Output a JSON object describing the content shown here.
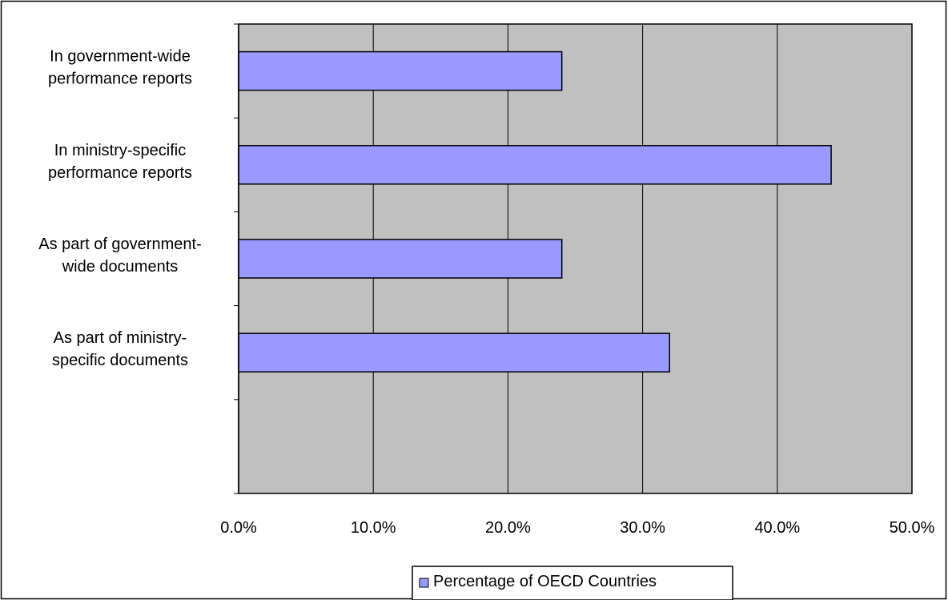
{
  "chart_data": {
    "type": "bar",
    "orientation": "horizontal",
    "categories": [
      "In government-wide performance reports",
      "In ministry-specific performance reports",
      "As part of government-wide documents",
      "As part of ministry-specific documents"
    ],
    "category_label_lines": [
      [
        "In government-wide",
        "performance reports"
      ],
      [
        "In ministry-specific",
        "performance reports"
      ],
      [
        "As part of government-",
        "wide documents"
      ],
      [
        "As part of ministry-",
        "specific documents"
      ]
    ],
    "series": [
      {
        "name": "Percentage of OECD Countries",
        "values": [
          0.24,
          0.44,
          0.24,
          0.32
        ]
      }
    ],
    "xlim": [
      0,
      0.5
    ],
    "x_ticks": [
      0,
      0.1,
      0.2,
      0.3,
      0.4,
      0.5
    ],
    "x_tick_labels": [
      "0.0%",
      "10.0%",
      "20.0%",
      "30.0%",
      "40.0%",
      "50.0%"
    ],
    "category_slots": 5,
    "grid": true,
    "legend_position": "bottom",
    "colors": {
      "plot_background": "#c0c0c0",
      "bar_fill": "#9999ff",
      "bar_stroke": "#000000",
      "gridline": "#000000",
      "frame": "#000000"
    }
  }
}
